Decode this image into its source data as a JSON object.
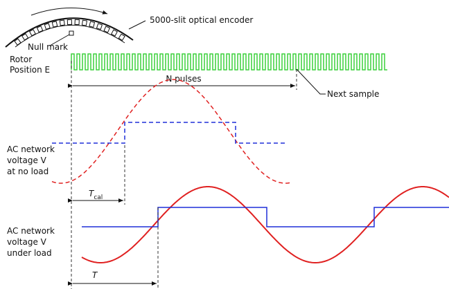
{
  "encoder": {
    "label": "5000-slit optical encoder",
    "null_mark": "Null mark"
  },
  "rotor": {
    "lines": [
      "Rotor",
      "Position E"
    ]
  },
  "pulses": {
    "label": "N pulses",
    "next_sample": "Next sample"
  },
  "no_load": {
    "lines": [
      "AC network",
      "voltage V",
      "at no load"
    ],
    "interval": {
      "symbol": "T",
      "subscript": "cal"
    }
  },
  "under_load": {
    "lines": [
      "AC network",
      "voltage V",
      "under load"
    ],
    "interval": {
      "symbol": "T"
    }
  }
}
